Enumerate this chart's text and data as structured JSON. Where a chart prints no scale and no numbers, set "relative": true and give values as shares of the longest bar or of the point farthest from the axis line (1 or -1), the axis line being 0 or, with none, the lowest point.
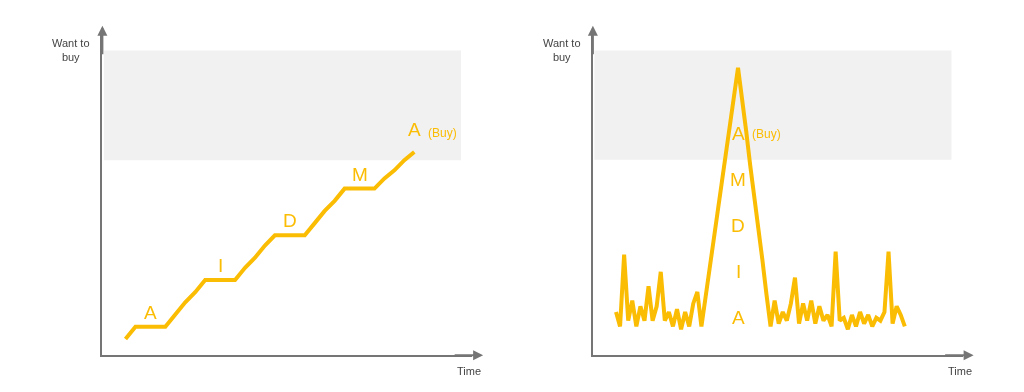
{
  "chart_data": [
    {
      "type": "line",
      "relative": true,
      "xlabel": "Time",
      "ylabel": "Want to buy",
      "categories": [
        null,
        null,
        null,
        null,
        null,
        null,
        null,
        null,
        null,
        null,
        null,
        null,
        null,
        null,
        null,
        null,
        null,
        null,
        null,
        null,
        null,
        null,
        null,
        null,
        null,
        null,
        null,
        null,
        null,
        null
      ],
      "series": [
        {
          "color": "#fbbc04",
          "values": [
            0.08,
            0.14,
            0.14,
            0.14,
            0.14,
            0.2,
            0.26,
            0.31,
            0.37,
            0.37,
            0.37,
            0.37,
            0.43,
            0.48,
            0.54,
            0.59,
            0.59,
            0.59,
            0.59,
            0.65,
            0.71,
            0.76,
            0.82,
            0.82,
            0.82,
            0.82,
            0.87,
            0.91,
            0.96,
            1.0
          ]
        }
      ],
      "bands": [
        {
          "axis": "y",
          "from": 0.96,
          "to": 1.5,
          "color": "#f1f1f1"
        }
      ],
      "annotations": [
        {
          "text": "A",
          "y": 0.14
        },
        {
          "text": "I",
          "y": 0.37
        },
        {
          "text": "D",
          "y": 0.59
        },
        {
          "text": "M",
          "y": 0.82
        },
        "A (Buy)"
      ]
    },
    {
      "type": "line",
      "relative": true,
      "xlabel": "Time",
      "ylabel": "Want to buy",
      "categories": [
        null,
        null,
        null,
        null,
        null,
        null,
        null,
        null,
        null,
        null,
        null,
        null,
        null,
        null,
        null,
        null,
        null,
        null,
        null,
        null,
        null,
        null,
        null,
        null,
        null,
        null,
        null,
        null,
        null,
        null,
        null,
        null,
        null,
        null,
        null,
        null,
        null,
        null,
        null,
        null,
        null,
        null,
        null,
        null,
        null,
        null,
        null,
        null,
        null,
        null,
        null,
        null,
        null,
        null,
        null,
        null,
        null,
        null,
        null,
        null,
        null,
        null,
        null,
        null,
        null,
        null,
        null,
        null,
        null,
        null,
        null,
        null
      ],
      "series": [
        {
          "color": "#fbbc04",
          "values": [
            0.15,
            0.1,
            0.35,
            0.12,
            0.19,
            0.1,
            0.17,
            0.12,
            0.24,
            0.12,
            0.17,
            0.29,
            0.12,
            0.15,
            0.1,
            0.16,
            0.09,
            0.15,
            0.1,
            0.18,
            0.22,
            0.1,
            0.2,
            0.3,
            0.4,
            0.5,
            0.6,
            0.7,
            0.8,
            0.9,
            1.0,
            0.89,
            0.78,
            0.66,
            0.55,
            0.44,
            0.33,
            0.21,
            0.1,
            0.19,
            0.11,
            0.15,
            0.12,
            0.18,
            0.27,
            0.11,
            0.18,
            0.12,
            0.19,
            0.11,
            0.17,
            0.12,
            0.14,
            0.1,
            0.36,
            0.12,
            0.13,
            0.09,
            0.14,
            0.1,
            0.15,
            0.11,
            0.14,
            0.1,
            0.13,
            0.12,
            0.15,
            0.36,
            0.11,
            0.17,
            0.14,
            0.1
          ]
        }
      ],
      "bands": [
        {
          "axis": "y",
          "from": 0.68,
          "to": 1.06,
          "color": "#f1f1f1"
        }
      ],
      "annotations": [
        "A",
        "I",
        "D",
        "M",
        "A (Buy)"
      ]
    }
  ]
}
